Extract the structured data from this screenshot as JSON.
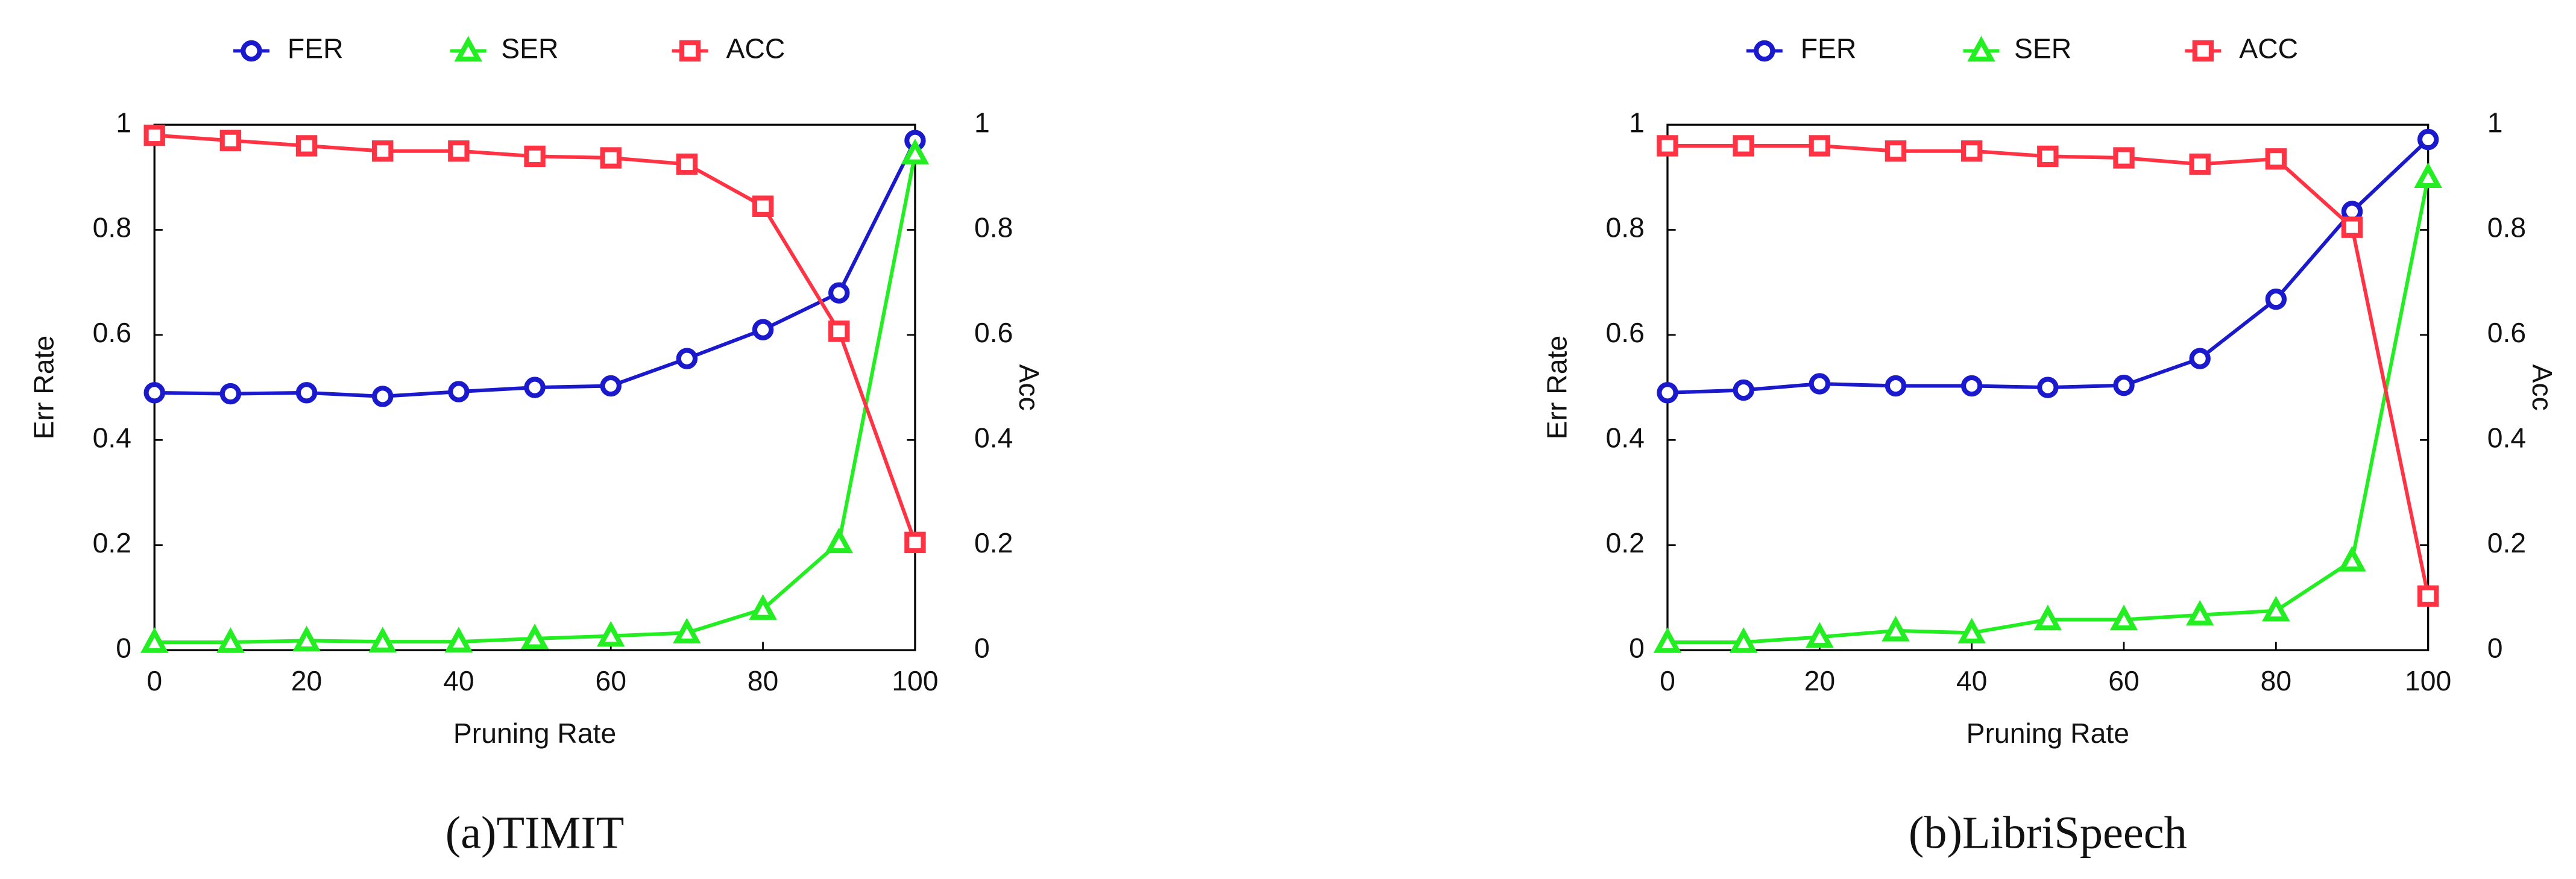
{
  "chart_data": [
    {
      "type": "line",
      "caption": "(a)TIMIT",
      "xlabel": "Pruning Rate",
      "ylabel": "Err Rate",
      "y2label": "Acc",
      "x": [
        0,
        10,
        20,
        30,
        40,
        50,
        60,
        70,
        80,
        90,
        100
      ],
      "xlim": [
        0,
        100
      ],
      "xticks": [
        0,
        20,
        40,
        60,
        80,
        100
      ],
      "ylim": [
        0,
        1
      ],
      "yticks": [
        0,
        0.2,
        0.4,
        0.6,
        0.8,
        1
      ],
      "y2lim": [
        0,
        1
      ],
      "y2ticks": [
        0,
        0.2,
        0.4,
        0.6,
        0.8,
        1
      ],
      "series": [
        {
          "name": "FER",
          "color": "#1a1acc",
          "marker": "circle",
          "values": [
            0.49,
            0.488,
            0.49,
            0.483,
            0.492,
            0.5,
            0.503,
            0.555,
            0.61,
            0.68,
            0.97
          ]
        },
        {
          "name": "SER",
          "color": "#22ee22",
          "marker": "triangle",
          "values": [
            0.015,
            0.015,
            0.018,
            0.016,
            0.016,
            0.022,
            0.027,
            0.033,
            0.078,
            0.205,
            0.945
          ]
        },
        {
          "name": "ACC",
          "color": "#ff3344",
          "marker": "square",
          "axis": "y2",
          "values": [
            0.98,
            0.97,
            0.96,
            0.95,
            0.95,
            0.94,
            0.937,
            0.925,
            0.845,
            0.607,
            0.205
          ]
        }
      ]
    },
    {
      "type": "line",
      "caption": "(b)LibriSpeech",
      "xlabel": "Pruning Rate",
      "ylabel": "Err Rate",
      "y2label": "Acc",
      "x": [
        0,
        10,
        20,
        30,
        40,
        50,
        60,
        70,
        80,
        90,
        100
      ],
      "xlim": [
        0,
        100
      ],
      "xticks": [
        0,
        20,
        40,
        60,
        80,
        100
      ],
      "ylim": [
        0,
        1
      ],
      "yticks": [
        0,
        0.2,
        0.4,
        0.6,
        0.8,
        1
      ],
      "y2lim": [
        0,
        1
      ],
      "y2ticks": [
        0,
        0.2,
        0.4,
        0.6,
        0.8,
        1
      ],
      "series": [
        {
          "name": "FER",
          "color": "#1a1acc",
          "marker": "circle",
          "values": [
            0.49,
            0.495,
            0.507,
            0.503,
            0.503,
            0.5,
            0.504,
            0.555,
            0.668,
            0.835,
            0.972
          ]
        },
        {
          "name": "SER",
          "color": "#22ee22",
          "marker": "triangle",
          "values": [
            0.015,
            0.015,
            0.025,
            0.037,
            0.033,
            0.058,
            0.058,
            0.067,
            0.075,
            0.17,
            0.9
          ]
        },
        {
          "name": "ACC",
          "color": "#ff3344",
          "marker": "square",
          "axis": "y2",
          "values": [
            0.96,
            0.96,
            0.96,
            0.95,
            0.95,
            0.94,
            0.937,
            0.925,
            0.935,
            0.805,
            0.103
          ]
        }
      ]
    }
  ]
}
